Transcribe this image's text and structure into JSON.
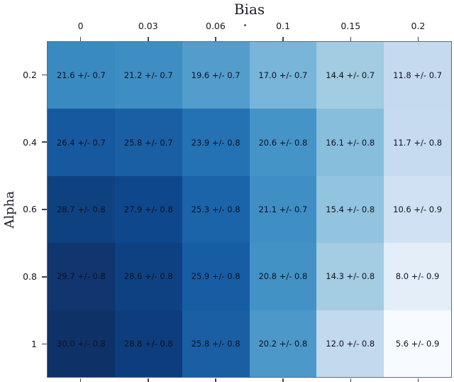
{
  "figure": {
    "background": "#ffffff",
    "spine_color": "#626c7a",
    "tick_color": "#3c4654",
    "cell_text_color": "#0e1220"
  },
  "chart_data": {
    "type": "heatmap",
    "title": "",
    "xlabel": "Bias",
    "ylabel": "Alpha",
    "colormap": "Blues",
    "grid": false,
    "x_ticks": [
      "0",
      "0.03",
      "0.06",
      "0.1",
      "0.15",
      "0.2"
    ],
    "y_ticks": [
      "0.2",
      "0.4",
      "0.6",
      "0.8",
      "1"
    ],
    "value_format": "mean +/- err",
    "rows": [
      {
        "alpha": "0.2",
        "cells": [
          {
            "mean": 21.6,
            "err": 0.7,
            "label": "21.6 +/- 0.7",
            "color": "#3A8AC2"
          },
          {
            "mean": 21.2,
            "err": 0.7,
            "label": "21.2 +/- 0.7",
            "color": "#3E8EC4"
          },
          {
            "mean": 19.6,
            "err": 0.7,
            "label": "19.6 +/- 0.7",
            "color": "#539DCD"
          },
          {
            "mean": 17.0,
            "err": 0.7,
            "label": "17.0 +/- 0.7",
            "color": "#78B5D9"
          },
          {
            "mean": 14.4,
            "err": 0.7,
            "label": "14.4 +/- 0.7",
            "color": "#A2CCE2"
          },
          {
            "mean": 11.8,
            "err": 0.7,
            "label": "11.8 +/- 0.7",
            "color": "#C5DAEF"
          }
        ]
      },
      {
        "alpha": "0.4",
        "cells": [
          {
            "mean": 26.4,
            "err": 0.7,
            "label": "26.4 +/- 0.7",
            "color": "#17599F"
          },
          {
            "mean": 25.8,
            "err": 0.7,
            "label": "25.8 +/- 0.7",
            "color": "#1A5EA4"
          },
          {
            "mean": 23.9,
            "err": 0.8,
            "label": "23.9 +/- 0.8",
            "color": "#2471B4"
          },
          {
            "mean": 20.6,
            "err": 0.8,
            "label": "20.6 +/- 0.8",
            "color": "#4594C7"
          },
          {
            "mean": 16.1,
            "err": 0.8,
            "label": "16.1 +/- 0.8",
            "color": "#87BEDC"
          },
          {
            "mean": 11.7,
            "err": 0.8,
            "label": "11.7 +/- 0.8",
            "color": "#C6DBEF"
          }
        ]
      },
      {
        "alpha": "0.6",
        "cells": [
          {
            "mean": 28.7,
            "err": 0.8,
            "label": "28.7 +/- 0.8",
            "color": "#0E4180"
          },
          {
            "mean": 27.9,
            "err": 0.8,
            "label": "27.9 +/- 0.8",
            "color": "#0F478C"
          },
          {
            "mean": 25.3,
            "err": 0.8,
            "label": "25.3 +/- 0.8",
            "color": "#1B64AA"
          },
          {
            "mean": 21.1,
            "err": 0.7,
            "label": "21.1 +/- 0.7",
            "color": "#3F8FC5"
          },
          {
            "mean": 15.4,
            "err": 0.8,
            "label": "15.4 +/- 0.8",
            "color": "#93C4DF"
          },
          {
            "mean": 10.6,
            "err": 0.9,
            "label": "10.6 +/- 0.9",
            "color": "#CFE1F2"
          }
        ]
      },
      {
        "alpha": "0.8",
        "cells": [
          {
            "mean": 29.7,
            "err": 0.8,
            "label": "29.7 +/- 0.8",
            "color": "#10356F"
          },
          {
            "mean": 28.6,
            "err": 0.8,
            "label": "28.6 +/- 0.8",
            "color": "#0E4182"
          },
          {
            "mean": 25.9,
            "err": 0.8,
            "label": "25.9 +/- 0.8",
            "color": "#175DA4"
          },
          {
            "mean": 20.8,
            "err": 0.8,
            "label": "20.8 +/- 0.8",
            "color": "#4392C6"
          },
          {
            "mean": 14.3,
            "err": 0.8,
            "label": "14.3 +/- 0.8",
            "color": "#A4CCE3"
          },
          {
            "mean": 8.0,
            "err": 0.9,
            "label": "8.0 +/- 0.9",
            "color": "#E3EEF9"
          }
        ]
      },
      {
        "alpha": "1",
        "cells": [
          {
            "mean": 30.0,
            "err": 0.8,
            "label": "30.0 +/- 0.8",
            "color": "#0E3168"
          },
          {
            "mean": 28.8,
            "err": 0.8,
            "label": "28.8 +/- 0.8",
            "color": "#0D3D7C"
          },
          {
            "mean": 25.8,
            "err": 0.8,
            "label": "25.8 +/- 0.8",
            "color": "#1A5EA4"
          },
          {
            "mean": 20.2,
            "err": 0.8,
            "label": "20.2 +/- 0.8",
            "color": "#4B98C9"
          },
          {
            "mean": 12.0,
            "err": 0.8,
            "label": "12.0 +/- 0.8",
            "color": "#C2D9EE"
          },
          {
            "mean": 5.6,
            "err": 0.9,
            "label": "5.6 +/- 0.9",
            "color": "#F7FBFF"
          }
        ]
      }
    ]
  }
}
